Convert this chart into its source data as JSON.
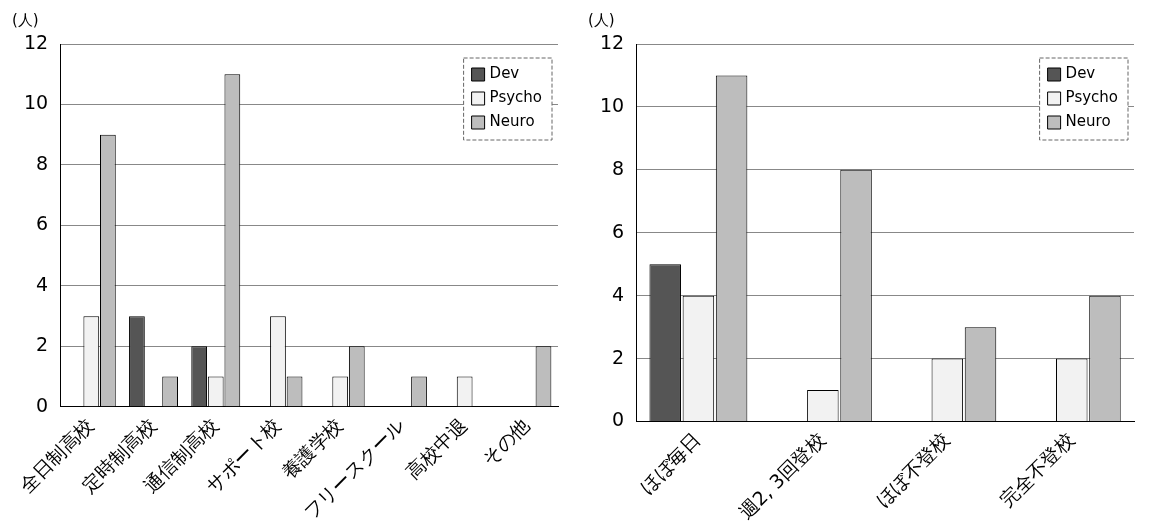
{
  "chart_data": [
    {
      "type": "bar",
      "ylabel": "(人)",
      "categories": [
        "全日制高校",
        "定時制高校",
        "通信制高校",
        "サポート校",
        "養護学校",
        "フリースクール",
        "高校中退",
        "その他"
      ],
      "series": [
        {
          "name": "Dev",
          "color": "#555555",
          "values": [
            0,
            3,
            2,
            0,
            0,
            0,
            0,
            0
          ]
        },
        {
          "name": "Psycho",
          "color": "#f2f2f2",
          "values": [
            3,
            0,
            1,
            3,
            1,
            0,
            1,
            0
          ]
        },
        {
          "name": "Neuro",
          "color": "#bdbdbd",
          "values": [
            9,
            1,
            11,
            1,
            2,
            1,
            0,
            2
          ]
        }
      ],
      "ylim": [
        0,
        12
      ],
      "yticks": [
        0,
        2,
        4,
        6,
        8,
        10,
        12
      ],
      "grid": "y",
      "legend": "top right"
    },
    {
      "type": "bar",
      "ylabel": "(人)",
      "categories": [
        "ほぼ毎日",
        "週2, 3回登校",
        "ほぼ不登校",
        "完全不登校"
      ],
      "series": [
        {
          "name": "Dev",
          "color": "#555555",
          "values": [
            5,
            0,
            0,
            0
          ]
        },
        {
          "name": "Psycho",
          "color": "#f2f2f2",
          "values": [
            4,
            1,
            2,
            2
          ]
        },
        {
          "name": "Neuro",
          "color": "#bdbdbd",
          "values": [
            11,
            8,
            3,
            4
          ]
        }
      ],
      "ylim": [
        0,
        12
      ],
      "yticks": [
        0,
        2,
        4,
        6,
        8,
        10,
        12
      ],
      "grid": "y",
      "legend": "top right"
    }
  ]
}
